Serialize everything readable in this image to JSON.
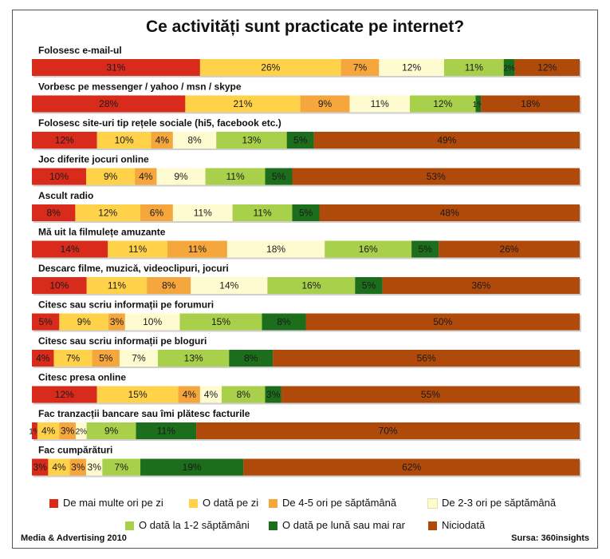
{
  "chart_data": {
    "type": "bar",
    "orientation": "horizontal-stacked-100",
    "title": "Ce activități sunt practicate pe internet?",
    "legend_position": "bottom",
    "series_colors": [
      "#d92b1c",
      "#ffd24a",
      "#f5a63c",
      "#fffbd0",
      "#a8d04a",
      "#1d6e1c",
      "#b04a0a"
    ],
    "series": [
      {
        "name": "De mai multe ori pe zi"
      },
      {
        "name": "O dată pe zi"
      },
      {
        "name": "De 4-5 ori pe săptămână"
      },
      {
        "name": "De 2-3 ori pe săptămână"
      },
      {
        "name": "O dată la 1-2 săptămâni"
      },
      {
        "name": "O dată pe lună sau mai rar"
      },
      {
        "name": "Niciodată"
      }
    ],
    "categories": [
      {
        "label": "Folosesc e-mail-ul",
        "values": [
          31,
          26,
          7,
          12,
          11,
          2,
          12
        ]
      },
      {
        "label": "Vorbesc pe messenger / yahoo / msn / skype",
        "values": [
          28,
          21,
          9,
          11,
          12,
          1,
          18
        ]
      },
      {
        "label": "Folosesc site-uri tip rețele sociale (hi5, facebook etc.)",
        "values": [
          12,
          10,
          4,
          8,
          13,
          5,
          49
        ]
      },
      {
        "label": "Joc diferite jocuri online",
        "values": [
          10,
          9,
          4,
          9,
          11,
          5,
          53
        ]
      },
      {
        "label": "Ascult radio",
        "values": [
          8,
          12,
          6,
          11,
          11,
          5,
          48
        ]
      },
      {
        "label": "Mă uit la filmulețe amuzante",
        "values": [
          14,
          11,
          11,
          18,
          16,
          5,
          26
        ]
      },
      {
        "label": "Descarc filme, muzică, videoclipuri, jocuri",
        "values": [
          10,
          11,
          8,
          14,
          16,
          5,
          36
        ]
      },
      {
        "label": "Citesc sau scriu informații pe forumuri",
        "values": [
          5,
          9,
          3,
          10,
          15,
          8,
          50
        ]
      },
      {
        "label": "Citesc sau scriu informații pe bloguri",
        "values": [
          4,
          7,
          5,
          7,
          13,
          8,
          56
        ]
      },
      {
        "label": "Citesc presa online",
        "values": [
          12,
          15,
          4,
          4,
          8,
          3,
          55
        ]
      },
      {
        "label": "Fac tranzacții bancare sau îmi plătesc facturile",
        "values": [
          1,
          4,
          3,
          2,
          9,
          11,
          70
        ]
      },
      {
        "label": "Fac cumpărături",
        "values": [
          3,
          4,
          3,
          3,
          7,
          19,
          62
        ]
      }
    ],
    "value_suffix": "%"
  },
  "footer": {
    "left": "Media & Advertising 2010",
    "right": "Sursa: 360insights"
  }
}
